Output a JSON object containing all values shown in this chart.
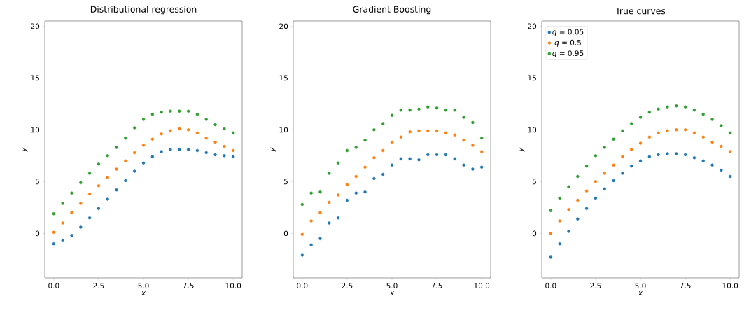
{
  "chart_data": [
    {
      "type": "scatter",
      "title": "Distributional regression",
      "xlabel": "*x*",
      "ylabel": "*y*",
      "marker": "circle",
      "x": [
        0,
        0.5,
        1,
        1.5,
        2,
        2.5,
        3,
        3.5,
        4,
        4.5,
        5,
        5.5,
        6,
        6.5,
        7,
        7.5,
        8,
        8.5,
        9,
        9.5,
        10
      ],
      "series": [
        {
          "color": "#1f77b4",
          "values": [
            -1.0,
            -0.7,
            -0.2,
            0.6,
            1.5,
            2.4,
            3.3,
            4.2,
            5.1,
            6.0,
            6.8,
            7.4,
            7.9,
            8.1,
            8.1,
            8.1,
            8.0,
            7.8,
            7.6,
            7.5,
            7.4
          ]
        },
        {
          "color": "#ff7f0e",
          "values": [
            0.1,
            1.0,
            2.0,
            2.9,
            3.8,
            4.6,
            5.4,
            6.2,
            7.0,
            7.8,
            8.5,
            9.1,
            9.6,
            9.9,
            10.1,
            10.0,
            9.7,
            9.2,
            8.8,
            8.4,
            8.0
          ]
        },
        {
          "color": "#2ca02c",
          "values": [
            1.9,
            2.9,
            3.9,
            4.9,
            5.8,
            6.7,
            7.5,
            8.3,
            9.2,
            10.2,
            11.0,
            11.5,
            11.7,
            11.8,
            11.8,
            11.8,
            11.5,
            11.0,
            10.5,
            10.1,
            9.7
          ]
        }
      ],
      "xlim": [
        -0.5,
        10.5
      ],
      "ylim": [
        -4.3,
        20.5
      ],
      "xticks": [
        {
          "value": 0,
          "label": "0.0"
        },
        {
          "value": 2.5,
          "label": "2.5"
        },
        {
          "value": 5,
          "label": "5.0"
        },
        {
          "value": 7.5,
          "label": "7.5"
        },
        {
          "value": 10,
          "label": "10.0"
        }
      ],
      "yticks": [
        0,
        5,
        10,
        15,
        20
      ]
    },
    {
      "type": "scatter",
      "title": "Gradient Boosting",
      "xlabel": "*x*",
      "ylabel": "*y*",
      "marker": "circle",
      "x": [
        0,
        0.5,
        1,
        1.5,
        2,
        2.5,
        3,
        3.5,
        4,
        4.5,
        5,
        5.5,
        6,
        6.5,
        7,
        7.5,
        8,
        8.5,
        9,
        9.5,
        10
      ],
      "series": [
        {
          "color": "#1f77b4",
          "values": [
            -2.1,
            -1.1,
            -0.5,
            1.0,
            1.5,
            3.2,
            3.9,
            4.0,
            5.3,
            5.7,
            6.6,
            7.2,
            7.2,
            7.1,
            7.6,
            7.6,
            7.6,
            7.2,
            6.6,
            6.2,
            6.4
          ]
        },
        {
          "color": "#ff7f0e",
          "values": [
            -0.1,
            1.2,
            2.0,
            3.0,
            3.7,
            4.7,
            5.5,
            6.4,
            7.3,
            8.0,
            8.8,
            9.3,
            9.8,
            9.9,
            9.9,
            9.9,
            9.7,
            9.5,
            9.0,
            8.5,
            7.9
          ]
        },
        {
          "color": "#2ca02c",
          "values": [
            2.8,
            3.9,
            4.0,
            5.8,
            6.8,
            8.0,
            8.3,
            9.0,
            10.0,
            10.6,
            11.4,
            11.9,
            11.9,
            12.0,
            12.2,
            12.1,
            11.9,
            11.9,
            11.2,
            10.7,
            9.2
          ]
        }
      ],
      "xlim": [
        -0.5,
        10.5
      ],
      "ylim": [
        -4.3,
        20.5
      ],
      "xticks": [
        {
          "value": 0,
          "label": "0.0"
        },
        {
          "value": 2.5,
          "label": "2.5"
        },
        {
          "value": 5,
          "label": "5.0"
        },
        {
          "value": 7.5,
          "label": "7.5"
        },
        {
          "value": 10,
          "label": "10.0"
        }
      ],
      "yticks": [
        0,
        5,
        10,
        15,
        20
      ]
    },
    {
      "type": "scatter",
      "title": "True curves",
      "xlabel": "*x*",
      "ylabel": "*y*",
      "marker": "circle",
      "legend": "top left",
      "x": [
        0,
        0.5,
        1,
        1.5,
        2,
        2.5,
        3,
        3.5,
        4,
        4.5,
        5,
        5.5,
        6,
        6.5,
        7,
        7.5,
        8,
        8.5,
        9,
        9.5,
        10
      ],
      "series": [
        {
          "name": "*q* = 0.05",
          "color": "#1f77b4",
          "values": [
            -2.3,
            -1.0,
            0.2,
            1.4,
            2.4,
            3.4,
            4.3,
            5.1,
            5.8,
            6.5,
            7.0,
            7.4,
            7.6,
            7.7,
            7.7,
            7.6,
            7.3,
            7.0,
            6.6,
            6.1,
            5.5
          ]
        },
        {
          "name": "*q* = 0.5",
          "color": "#ff7f0e",
          "values": [
            0.0,
            1.2,
            2.3,
            3.2,
            4.1,
            5.0,
            5.8,
            6.6,
            7.4,
            8.1,
            8.7,
            9.3,
            9.7,
            9.9,
            10.0,
            10.0,
            9.7,
            9.3,
            8.8,
            8.4,
            7.9
          ]
        },
        {
          "name": "*q* = 0.95",
          "color": "#2ca02c",
          "values": [
            2.2,
            3.4,
            4.5,
            5.5,
            6.5,
            7.5,
            8.3,
            9.1,
            9.9,
            10.6,
            11.2,
            11.7,
            12.0,
            12.2,
            12.3,
            12.2,
            11.9,
            11.5,
            11.0,
            10.4,
            9.7
          ]
        }
      ],
      "xlim": [
        -0.5,
        10.5
      ],
      "ylim": [
        -4.3,
        20.5
      ],
      "xticks": [
        {
          "value": 0,
          "label": "0.0"
        },
        {
          "value": 2.5,
          "label": "2.5"
        },
        {
          "value": 5,
          "label": "5.0"
        },
        {
          "value": 7.5,
          "label": "7.5"
        },
        {
          "value": 10,
          "label": "10.0"
        }
      ],
      "yticks": [
        0,
        5,
        10,
        15,
        20
      ]
    }
  ]
}
